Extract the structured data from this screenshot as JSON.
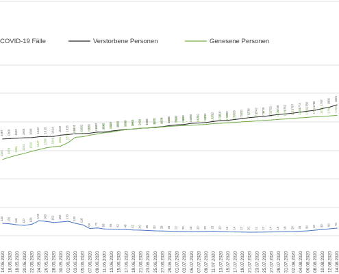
{
  "chart_data": {
    "type": "line",
    "legend": {
      "placement": "top",
      "entries": [
        {
          "label": "COVID-19 Fälle",
          "color": "#4472c4"
        },
        {
          "label": "Verstorbene Personen",
          "color": "#262626"
        },
        {
          "label": "Genesene Personen",
          "color": "#70ad47"
        }
      ]
    },
    "x_labels": [
      "14.05.2020",
      "16.05.2020",
      "18.05.2020",
      "20.05.2020",
      "22.05.2020",
      "24.05.2020",
      "26.05.2020",
      "28.05.2020",
      "30.05.2020",
      "01.06.2020",
      "03.06.2020",
      "05.06.2020",
      "07.06.2020",
      "09.06.2020",
      "11.06.2020",
      "13.06.2020",
      "15.06.2020",
      "17.06.2020",
      "19.06.2020",
      "21.06.2020",
      "23.06.2020",
      "25.06.2020",
      "27.06.2020",
      "29.06.2020",
      "01.07.2020",
      "03.07.2020",
      "05.07.2020",
      "07.07.2020",
      "09.07.2020",
      "11.07.2020",
      "13.07.2020",
      "15.07.2020",
      "17.07.2020",
      "19.07.2020",
      "21.07.2020",
      "23.07.2020",
      "25.07.2020",
      "27.07.2020",
      "29.07.2020",
      "31.07.2020",
      "02.08.2020",
      "04.08.2020",
      "06.08.2020",
      "08.08.2020",
      "10.08.2020",
      "12.08.2020",
      "14.08.2020"
    ],
    "series": [
      {
        "name": "Verstorbene Personen",
        "color": "#262626",
        "values": [
          1597,
          1600,
          1602,
          1605,
          1606,
          1612,
          1613,
          1614,
          1622,
          1626,
          1631,
          1632,
          1635,
          1642,
          1642,
          1650,
          1655,
          1660,
          1662,
          1668,
          1669,
          1675,
          1678,
          1685,
          1690,
          1693,
          1700,
          1702,
          1705,
          1712,
          1718,
          1720,
          1725,
          1731,
          1738,
          1742,
          1745,
          1752,
          1758,
          1762,
          1767,
          1774,
          1780,
          1786,
          1797,
          1806,
          1821
        ]
      },
      {
        "name": "Genesene Personen",
        "color": "#70ad47",
        "values": [
          1463,
          1478,
          1491,
          1503,
          1516,
          1527,
          1539,
          1546,
          1551,
          1573,
          1608,
          1612,
          1622,
          1630,
          1638,
          1643,
          1652,
          1658,
          1664,
          1668,
          1670,
          1672,
          1676,
          1680,
          1683,
          1685,
          1688,
          1690,
          1693,
          1698,
          1700,
          1703,
          1706,
          1710,
          1712,
          1716,
          1719,
          1722,
          1726,
          1729,
          1733,
          1736,
          1739,
          1743,
          1745,
          1748,
          1752
        ]
      },
      {
        "name": "COVID-19 Fälle",
        "color": "#4472c4",
        "values": [
          140,
          132,
          118,
          110,
          126,
          178,
          168,
          152,
          160,
          170,
          140,
          118,
          64,
          72,
          58,
          55,
          52,
          48,
          42,
          40,
          35,
          30,
          28,
          25,
          22,
          20,
          18,
          20,
          22,
          25,
          20,
          15,
          14,
          12,
          10,
          11,
          12,
          14,
          15,
          18,
          20,
          25,
          30,
          40,
          50,
          60,
          70
        ]
      }
    ],
    "upper_ylim": [
      1250,
      2150
    ],
    "lower_ylim": [
      0,
      1000
    ],
    "grid": true
  }
}
